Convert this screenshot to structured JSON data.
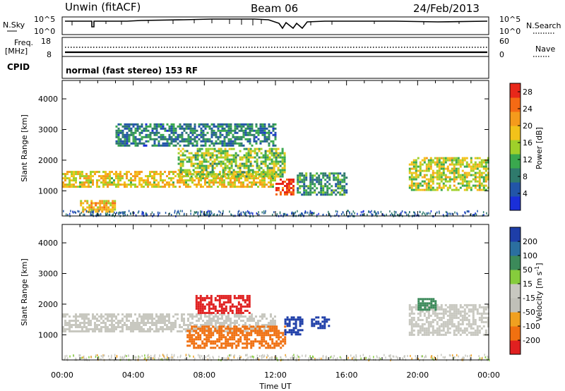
{
  "header": {
    "station": "Unwin (fitACF)",
    "beam": "Beam 06",
    "date": "24/Feb/2013"
  },
  "noise_panel": {
    "left_label": "N.Sky",
    "right_label": "N.Search",
    "left_ticks": [
      "10^5",
      "10^0"
    ],
    "right_ticks": [
      "10^5",
      "10^0"
    ]
  },
  "freq_panel": {
    "left_label_1": "Freq.",
    "left_label_2": "[MHz]",
    "right_label": "Nave",
    "left_ticks": [
      "18",
      "8"
    ],
    "right_ticks": [
      "60",
      "0"
    ]
  },
  "cpid_panel": {
    "label": "CPID",
    "text": "normal (fast stereo) 153 RF"
  },
  "colors": {
    "power": [
      "#1a2fd8",
      "#2255a8",
      "#2f7a6c",
      "#3aa84e",
      "#9fd02a",
      "#f2c21a",
      "#f59b1c",
      "#f56a14",
      "#e8281a"
    ],
    "velocity": [
      "#1e3ea8",
      "#2b6fa0",
      "#3c8a5a",
      "#86cc3c",
      "#c8c8c0",
      "#c0c0b8",
      "#f0a020",
      "#f07010",
      "#e02020"
    ]
  },
  "chart_data": [
    {
      "type": "heatmap",
      "title": "",
      "xlabel": "Time UT",
      "ylabel": "Slant Range [km]",
      "x_ticks": [
        "00:00",
        "04:00",
        "08:00",
        "12:00",
        "16:00",
        "20:00",
        "00:00"
      ],
      "xlim_hours": [
        0,
        24
      ],
      "y_ticks": [
        1000,
        2000,
        3000,
        4000
      ],
      "ylim_km": [
        180,
        4600
      ],
      "colorbar": {
        "label": "Power [dB]",
        "ticks": [
          4,
          8,
          12,
          16,
          20,
          24,
          28
        ],
        "range": [
          0,
          30
        ]
      },
      "regions": [
        {
          "t_start": 0.0,
          "t_end": 12.0,
          "r_low": 1150,
          "r_high": 1650,
          "value": 18
        },
        {
          "t_start": 6.5,
          "t_end": 12.5,
          "r_low": 1500,
          "r_high": 2400,
          "value": 14
        },
        {
          "t_start": 12.0,
          "t_end": 13.0,
          "r_low": 900,
          "r_high": 1400,
          "value": 28
        },
        {
          "t_start": 13.2,
          "t_end": 16.0,
          "r_low": 900,
          "r_high": 1600,
          "value": 10
        },
        {
          "t_start": 19.5,
          "t_end": 24.0,
          "r_low": 1000,
          "r_high": 2100,
          "value": 16
        },
        {
          "t_start": 1.0,
          "t_end": 3.0,
          "r_low": 300,
          "r_high": 700,
          "value": 20
        },
        {
          "t_start": 3.0,
          "t_end": 12.0,
          "r_low": 2500,
          "r_high": 3200,
          "value": 8
        }
      ]
    },
    {
      "type": "heatmap",
      "title": "",
      "xlabel": "Time UT",
      "ylabel": "Slant Range [km]",
      "x_ticks": [
        "00:00",
        "04:00",
        "08:00",
        "12:00",
        "16:00",
        "20:00",
        "00:00"
      ],
      "xlim_hours": [
        0,
        24
      ],
      "y_ticks": [
        1000,
        2000,
        3000,
        4000
      ],
      "ylim_km": [
        180,
        4600
      ],
      "colorbar": {
        "label": "Velocity [m s^-1]",
        "ticks": [
          200,
          100,
          50,
          15,
          -15,
          -50,
          -100,
          -200
        ]
      },
      "regions": [
        {
          "t_start": 0.0,
          "t_end": 12.0,
          "r_low": 1100,
          "r_high": 1700,
          "value": 0
        },
        {
          "t_start": 7.5,
          "t_end": 10.5,
          "r_low": 1700,
          "r_high": 2300,
          "value": -200
        },
        {
          "t_start": 7.0,
          "t_end": 12.5,
          "r_low": 600,
          "r_high": 1300,
          "value": -60
        },
        {
          "t_start": 12.5,
          "t_end": 13.5,
          "r_low": 1000,
          "r_high": 1600,
          "value": 150
        },
        {
          "t_start": 14.0,
          "t_end": 15.0,
          "r_low": 1200,
          "r_high": 1600,
          "value": 200
        },
        {
          "t_start": 19.5,
          "t_end": 24.0,
          "r_low": 1000,
          "r_high": 2000,
          "value": 0
        },
        {
          "t_start": 20.0,
          "t_end": 21.0,
          "r_low": 1800,
          "r_high": 2200,
          "value": 50
        }
      ]
    }
  ]
}
